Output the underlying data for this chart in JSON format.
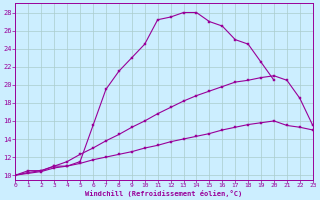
{
  "xlabel": "Windchill (Refroidissement éolien,°C)",
  "background_color": "#cceeff",
  "grid_color": "#aacccc",
  "line_color": "#990099",
  "xlim": [
    0,
    23
  ],
  "ylim": [
    9.5,
    29
  ],
  "xticks": [
    0,
    1,
    2,
    3,
    4,
    5,
    6,
    7,
    8,
    9,
    10,
    11,
    12,
    13,
    14,
    15,
    16,
    17,
    18,
    19,
    20,
    21,
    22,
    23
  ],
  "yticks": [
    10,
    12,
    14,
    16,
    18,
    20,
    22,
    24,
    26,
    28
  ],
  "curve1_x": [
    0,
    1,
    2,
    3,
    4,
    5,
    6,
    7,
    8,
    9,
    10,
    11,
    12,
    13,
    14,
    15,
    16,
    17,
    18,
    19,
    20,
    21,
    22
  ],
  "curve1_y": [
    10,
    10.5,
    10.5,
    11,
    11,
    11.5,
    15.5,
    19.5,
    21.5,
    23.0,
    24.5,
    27.2,
    27.5,
    28.0,
    28.0,
    27.0,
    26.5,
    25.0,
    24.5,
    22.5,
    20.5,
    null,
    null
  ],
  "curve2_x": [
    0,
    1,
    2,
    3,
    4,
    5,
    6,
    7,
    8,
    9,
    10,
    11,
    12,
    13,
    14,
    15,
    16,
    17,
    18,
    19,
    20,
    21,
    22,
    23
  ],
  "curve2_y": [
    10,
    10.2,
    10.4,
    10.8,
    11.0,
    11.3,
    11.7,
    12.0,
    12.3,
    12.6,
    13.0,
    13.3,
    13.7,
    14.0,
    14.3,
    14.6,
    15.0,
    15.3,
    15.6,
    15.8,
    16.0,
    15.5,
    15.3,
    15.0
  ],
  "curve3_x": [
    0,
    1,
    2,
    3,
    4,
    5,
    6,
    7,
    8,
    9,
    10,
    11,
    12,
    13,
    14,
    15,
    16,
    17,
    18,
    19,
    20,
    21,
    22,
    23
  ],
  "curve3_y": [
    10,
    10.3,
    10.5,
    11.0,
    11.5,
    12.3,
    13.0,
    13.8,
    14.5,
    15.3,
    16.0,
    16.8,
    17.5,
    18.2,
    18.8,
    19.3,
    19.8,
    20.3,
    20.5,
    20.8,
    21.0,
    20.5,
    18.5,
    15.5
  ]
}
